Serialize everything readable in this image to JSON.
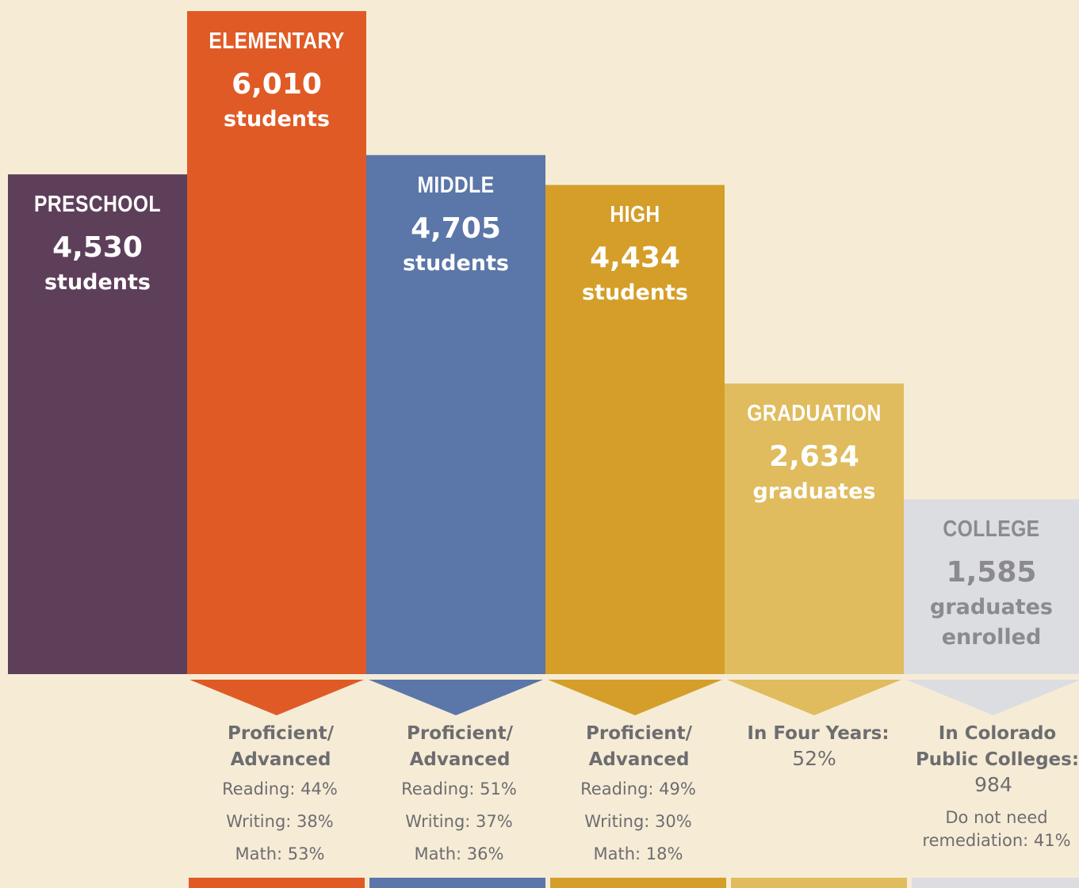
{
  "chart_data": {
    "type": "bar",
    "categories": [
      "PRESCHOOL",
      "ELEMENTARY",
      "MIDDLE",
      "HIGH",
      "GRADUATION",
      "COLLEGE"
    ],
    "values": [
      4530,
      6010,
      4705,
      4434,
      2634,
      1585
    ],
    "value_labels": [
      "4,530",
      "6,010",
      "4,705",
      "4,434",
      "2,634",
      "1,585"
    ],
    "units": [
      "students",
      "students",
      "students",
      "students",
      "graduates",
      "graduates enrolled"
    ],
    "colors": [
      "#5e3f5a",
      "#e05a25",
      "#5b76a8",
      "#d49e29",
      "#e0bc5e",
      "#dcdde0"
    ],
    "text_colors": [
      "#ffffff",
      "#ffffff",
      "#ffffff",
      "#ffffff",
      "#ffffff",
      "#8a8a8f"
    ],
    "ylim": [
      0,
      6010
    ],
    "details": [
      {
        "heading": "Proficient/ Advanced",
        "lines": [
          "Reading: 44%",
          "Writing: 38%",
          "Math: 53%"
        ]
      },
      {
        "heading": "Proficient/ Advanced",
        "lines": [
          "Reading: 51%",
          "Writing: 37%",
          "Math: 36%"
        ]
      },
      {
        "heading": "Proficient/ Advanced",
        "lines": [
          "Reading: 49%",
          "Writing: 30%",
          "Math: 18%"
        ]
      },
      {
        "heading": "In Four Years:",
        "value": "52%"
      },
      {
        "heading": "In Colorado Public Colleges:",
        "value": "984",
        "lines": [
          "Do not need remediation: 41%"
        ]
      }
    ]
  }
}
